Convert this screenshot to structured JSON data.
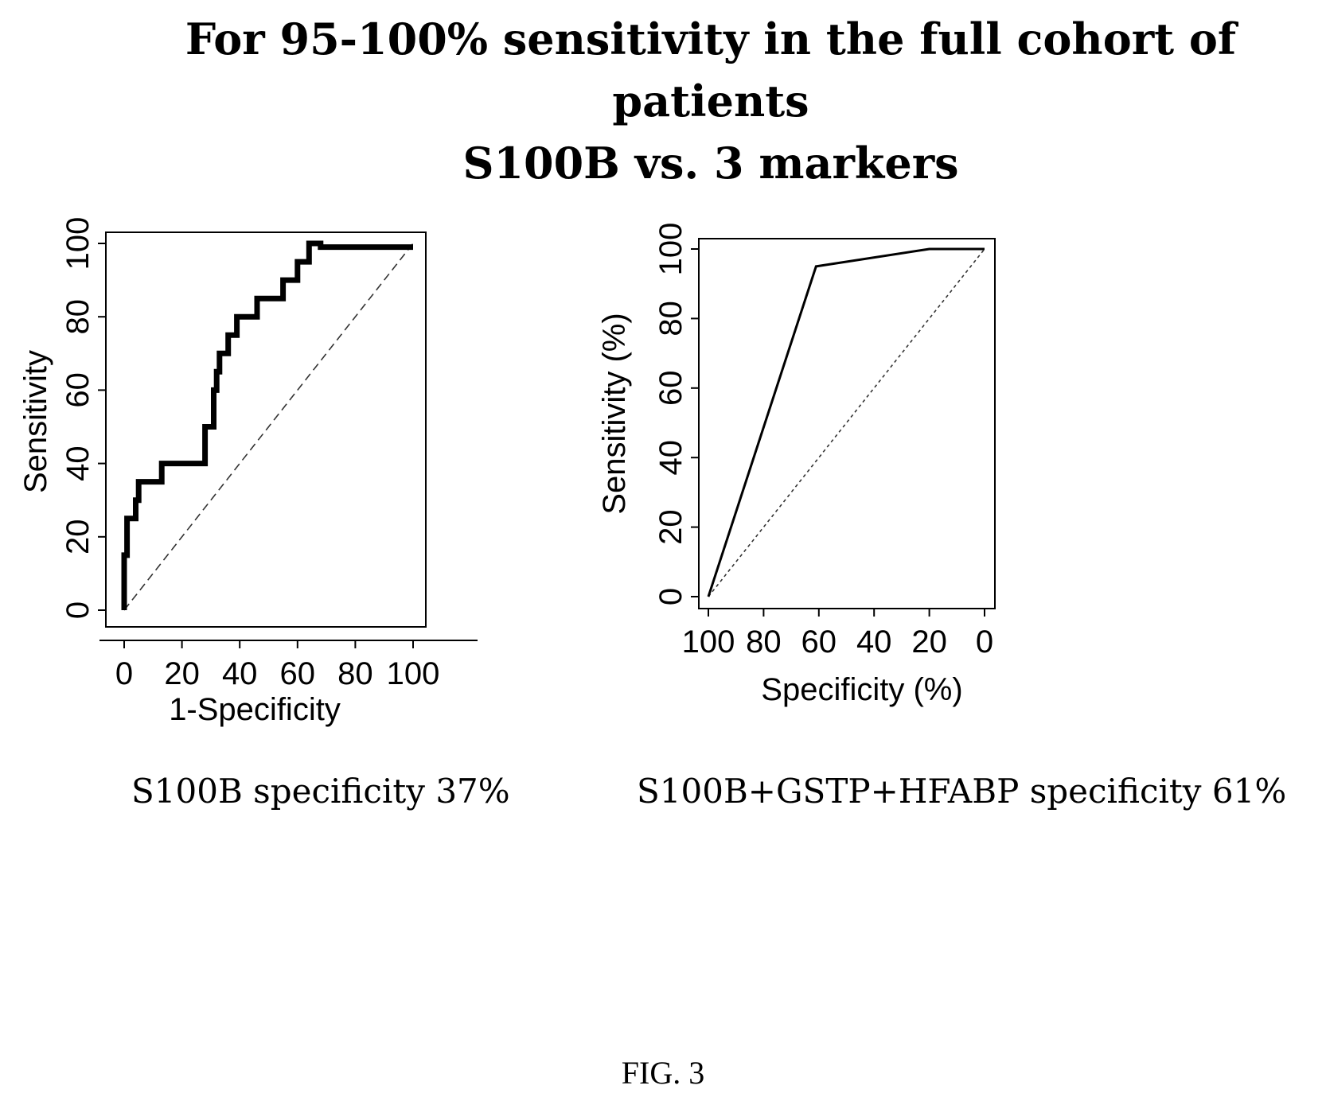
{
  "title": {
    "line1": "For 95-100% sensitivity in the full cohort of",
    "line2": "patients",
    "line3": "S100B vs. 3 markers"
  },
  "chart_data": [
    {
      "type": "line",
      "xlabel": "1-Specificity",
      "ylabel": "Sensitivity",
      "xlim": [
        0,
        100
      ],
      "ylim": [
        0,
        100
      ],
      "xticks": [
        0,
        20,
        40,
        60,
        80,
        100
      ],
      "yticks": [
        0,
        20,
        40,
        60,
        80,
        100
      ],
      "series": [
        {
          "x": [
            0,
            0,
            1,
            1,
            2,
            2,
            4,
            4,
            5,
            5,
            8,
            8,
            13,
            13,
            28,
            28,
            31,
            31,
            32,
            32,
            33,
            33,
            34,
            34,
            36,
            36,
            39,
            39,
            46,
            46,
            55,
            55,
            60,
            60,
            64,
            64,
            68,
            68,
            100
          ],
          "y": [
            0,
            15,
            15,
            25,
            25,
            25,
            25,
            30,
            30,
            35,
            35,
            35,
            35,
            40,
            40,
            50,
            50,
            60,
            60,
            65,
            65,
            70,
            70,
            70,
            70,
            75,
            75,
            80,
            80,
            85,
            85,
            90,
            90,
            95,
            95,
            100,
            100,
            99,
            99
          ]
        }
      ],
      "reference_line": true,
      "caption": "S100B specificity 37%"
    },
    {
      "type": "line",
      "xlabel": "Specificity (%)",
      "ylabel": "Sensitivity (%)",
      "xlim": [
        100,
        0
      ],
      "ylim": [
        0,
        100
      ],
      "xticks": [
        100,
        80,
        60,
        40,
        20,
        0
      ],
      "yticks": [
        0,
        20,
        40,
        60,
        80,
        100
      ],
      "series": [
        {
          "x": [
            100,
            61,
            20,
            0
          ],
          "y": [
            0,
            95,
            100,
            100
          ]
        }
      ],
      "reference_line": true,
      "caption": "S100B+GSTP+HFABP specificity 61%"
    }
  ],
  "figure_label": "FIG. 3"
}
